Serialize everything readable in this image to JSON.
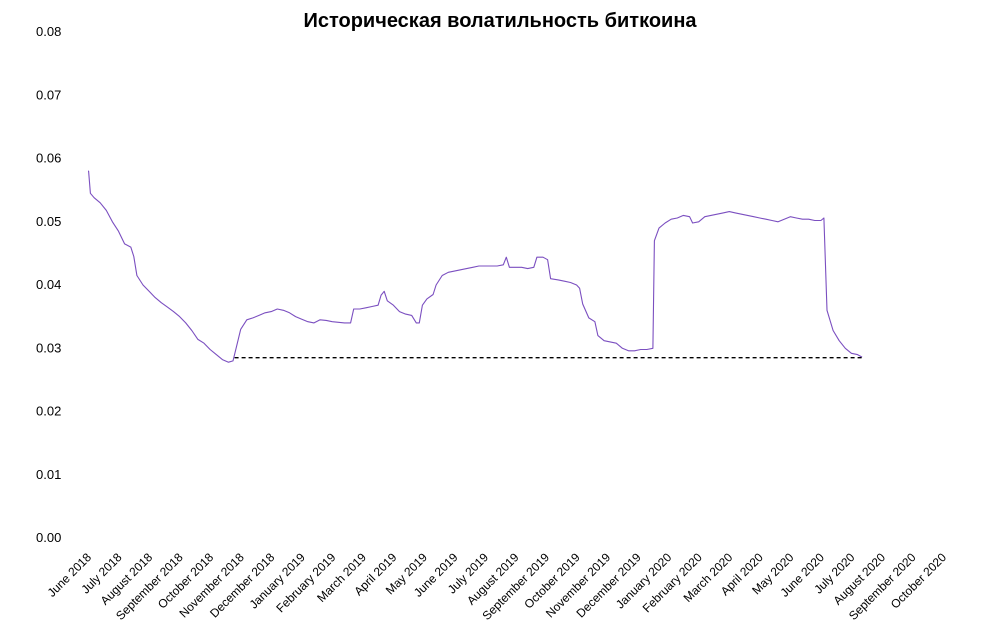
{
  "chart_data": {
    "type": "line",
    "title": "Историческая волатильность биткоина",
    "xlabel": "",
    "ylabel": "",
    "ylim": [
      0,
      0.08
    ],
    "yticks": [
      "0.00",
      "0.01",
      "0.02",
      "0.03",
      "0.04",
      "0.05",
      "0.06",
      "0.07",
      "0.08"
    ],
    "grid": false,
    "legend": "none",
    "categories": [
      "June 2018",
      "July 2018",
      "August 2018",
      "September 2018",
      "October 2018",
      "November 2018",
      "December 2018",
      "January 2019",
      "February 2019",
      "March 2019",
      "April 2019",
      "May 2019",
      "June 2019",
      "July 2019",
      "August 2019",
      "September 2019",
      "October 2019",
      "November 2019",
      "December 2019",
      "January 2020",
      "February 2020",
      "March 2020",
      "April 2020",
      "May 2020",
      "June 2020",
      "July 2020",
      "August 2020",
      "September 2020",
      "October 2020"
    ],
    "series": [
      {
        "color": "#7b4fc0",
        "values": [
          [
            0.0,
            0.058
          ],
          [
            0.02,
            0.058
          ],
          [
            0.08,
            0.0545
          ],
          [
            0.2,
            0.0538
          ],
          [
            0.4,
            0.053
          ],
          [
            0.6,
            0.0518
          ],
          [
            0.8,
            0.05
          ],
          [
            1.0,
            0.0485
          ],
          [
            1.2,
            0.0465
          ],
          [
            1.4,
            0.046
          ],
          [
            1.5,
            0.0445
          ],
          [
            1.6,
            0.0415
          ],
          [
            1.8,
            0.04
          ],
          [
            2.0,
            0.039
          ],
          [
            2.2,
            0.038
          ],
          [
            2.4,
            0.0372
          ],
          [
            2.6,
            0.0365
          ],
          [
            2.8,
            0.0358
          ],
          [
            3.0,
            0.035
          ],
          [
            3.2,
            0.034
          ],
          [
            3.4,
            0.0328
          ],
          [
            3.6,
            0.0314
          ],
          [
            3.8,
            0.0308
          ],
          [
            4.0,
            0.0298
          ],
          [
            4.2,
            0.029
          ],
          [
            4.4,
            0.0282
          ],
          [
            4.6,
            0.0278
          ],
          [
            4.75,
            0.028
          ],
          [
            4.85,
            0.03
          ],
          [
            5.0,
            0.033
          ],
          [
            5.2,
            0.0345
          ],
          [
            5.4,
            0.0348
          ],
          [
            5.6,
            0.0352
          ],
          [
            5.8,
            0.0356
          ],
          [
            6.0,
            0.0358
          ],
          [
            6.2,
            0.0362
          ],
          [
            6.4,
            0.036
          ],
          [
            6.6,
            0.0356
          ],
          [
            6.8,
            0.035
          ],
          [
            7.0,
            0.0346
          ],
          [
            7.2,
            0.0342
          ],
          [
            7.4,
            0.034
          ],
          [
            7.6,
            0.0345
          ],
          [
            7.8,
            0.0344
          ],
          [
            8.0,
            0.0342
          ],
          [
            8.2,
            0.0341
          ],
          [
            8.4,
            0.034
          ],
          [
            8.6,
            0.034
          ],
          [
            8.7,
            0.0362
          ],
          [
            8.9,
            0.0362
          ],
          [
            9.1,
            0.0364
          ],
          [
            9.3,
            0.0366
          ],
          [
            9.5,
            0.0368
          ],
          [
            9.6,
            0.0384
          ],
          [
            9.7,
            0.039
          ],
          [
            9.8,
            0.0375
          ],
          [
            10.0,
            0.0368
          ],
          [
            10.2,
            0.0358
          ],
          [
            10.4,
            0.0354
          ],
          [
            10.6,
            0.0352
          ],
          [
            10.75,
            0.034
          ],
          [
            10.85,
            0.034
          ],
          [
            10.95,
            0.0368
          ],
          [
            11.1,
            0.0378
          ],
          [
            11.3,
            0.0385
          ],
          [
            11.4,
            0.04
          ],
          [
            11.6,
            0.0415
          ],
          [
            11.8,
            0.042
          ],
          [
            12.0,
            0.0422
          ],
          [
            12.2,
            0.0424
          ],
          [
            12.4,
            0.0426
          ],
          [
            12.6,
            0.0428
          ],
          [
            12.8,
            0.043
          ],
          [
            13.0,
            0.043
          ],
          [
            13.2,
            0.043
          ],
          [
            13.4,
            0.043
          ],
          [
            13.6,
            0.0432
          ],
          [
            13.7,
            0.0444
          ],
          [
            13.8,
            0.0428
          ],
          [
            14.0,
            0.0428
          ],
          [
            14.2,
            0.0428
          ],
          [
            14.4,
            0.0426
          ],
          [
            14.6,
            0.0428
          ],
          [
            14.7,
            0.0444
          ],
          [
            14.9,
            0.0444
          ],
          [
            15.05,
            0.044
          ],
          [
            15.15,
            0.041
          ],
          [
            15.4,
            0.0408
          ],
          [
            15.6,
            0.0406
          ],
          [
            15.8,
            0.0404
          ],
          [
            16.0,
            0.04
          ],
          [
            16.1,
            0.0395
          ],
          [
            16.2,
            0.037
          ],
          [
            16.4,
            0.0348
          ],
          [
            16.6,
            0.0342
          ],
          [
            16.7,
            0.032
          ],
          [
            16.9,
            0.0312
          ],
          [
            17.1,
            0.031
          ],
          [
            17.3,
            0.0308
          ],
          [
            17.5,
            0.03
          ],
          [
            17.7,
            0.0296
          ],
          [
            17.9,
            0.0296
          ],
          [
            18.1,
            0.0298
          ],
          [
            18.3,
            0.0298
          ],
          [
            18.5,
            0.03
          ],
          [
            18.55,
            0.047
          ],
          [
            18.7,
            0.049
          ],
          [
            18.9,
            0.0498
          ],
          [
            19.1,
            0.0504
          ],
          [
            19.3,
            0.0506
          ],
          [
            19.5,
            0.051
          ],
          [
            19.7,
            0.0508
          ],
          [
            19.8,
            0.0498
          ],
          [
            20.0,
            0.05
          ],
          [
            20.2,
            0.0508
          ],
          [
            20.4,
            0.051
          ],
          [
            20.6,
            0.0512
          ],
          [
            20.8,
            0.0514
          ],
          [
            21.0,
            0.0516
          ],
          [
            21.2,
            0.0514
          ],
          [
            21.4,
            0.0512
          ],
          [
            21.6,
            0.051
          ],
          [
            21.8,
            0.0508
          ],
          [
            22.0,
            0.0506
          ],
          [
            22.2,
            0.0504
          ],
          [
            22.4,
            0.0502
          ],
          [
            22.6,
            0.05
          ],
          [
            22.8,
            0.0504
          ],
          [
            23.0,
            0.0508
          ],
          [
            23.2,
            0.0506
          ],
          [
            23.4,
            0.0504
          ],
          [
            23.6,
            0.0504
          ],
          [
            23.8,
            0.0502
          ],
          [
            24.0,
            0.0502
          ],
          [
            24.1,
            0.0506
          ],
          [
            24.2,
            0.036
          ],
          [
            24.4,
            0.0328
          ],
          [
            24.6,
            0.0312
          ],
          [
            24.8,
            0.03
          ],
          [
            25.0,
            0.0292
          ],
          [
            25.2,
            0.029
          ],
          [
            25.35,
            0.0286
          ]
        ]
      },
      {
        "color": "#000000",
        "dashed": true,
        "values": [
          [
            4.8,
            0.0285
          ],
          [
            25.35,
            0.0285
          ]
        ]
      }
    ]
  }
}
